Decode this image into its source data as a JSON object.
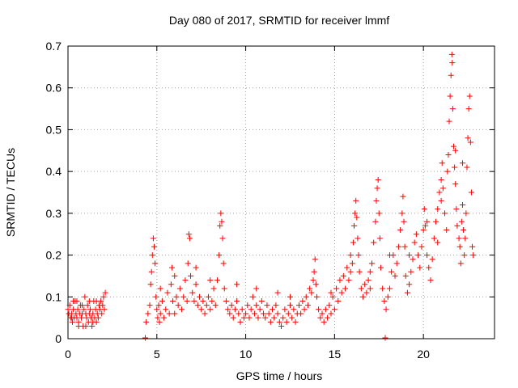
{
  "chart_data": {
    "type": "scatter",
    "title": "Day 080 of 2017, SRMTID for receiver lmmf",
    "xlabel": "GPS time / hours",
    "ylabel": "SRMTID / TECUs",
    "xlim": [
      0,
      24
    ],
    "ylim": [
      0,
      0.7
    ],
    "xticks": [
      {
        "value": 0,
        "label": "0"
      },
      {
        "value": 5,
        "label": "5"
      },
      {
        "value": 10,
        "label": "10"
      },
      {
        "value": 15,
        "label": "15"
      },
      {
        "value": 20,
        "label": "20"
      }
    ],
    "yticks": [
      {
        "value": 0,
        "label": "0"
      },
      {
        "value": 0.1,
        "label": "0.1"
      },
      {
        "value": 0.2,
        "label": "0.2"
      },
      {
        "value": 0.3,
        "label": "0.3"
      },
      {
        "value": 0.4,
        "label": "0.4"
      },
      {
        "value": 0.5,
        "label": "0.5"
      },
      {
        "value": 0.6,
        "label": "0.6"
      },
      {
        "value": 0.7,
        "label": "0.7"
      }
    ],
    "grid": true,
    "marker": "+",
    "series": [
      {
        "name": "SRMTID",
        "color": "#ff0000",
        "points": [
          [
            0.0,
            0.07
          ],
          [
            0.05,
            0.06
          ],
          [
            0.1,
            0.08
          ],
          [
            0.15,
            0.05
          ],
          [
            0.2,
            0.06
          ],
          [
            0.25,
            0.04
          ],
          [
            0.3,
            0.07
          ],
          [
            0.35,
            0.05
          ],
          [
            0.4,
            0.09
          ],
          [
            0.45,
            0.06
          ],
          [
            0.5,
            0.05
          ],
          [
            0.55,
            0.07
          ],
          [
            0.6,
            0.04
          ],
          [
            0.65,
            0.06
          ],
          [
            0.7,
            0.08
          ],
          [
            0.75,
            0.05
          ],
          [
            0.8,
            0.06
          ],
          [
            0.85,
            0.03
          ],
          [
            0.9,
            0.07
          ],
          [
            0.95,
            0.1
          ],
          [
            1.0,
            0.06
          ],
          [
            1.05,
            0.05
          ],
          [
            1.1,
            0.08
          ],
          [
            1.15,
            0.04
          ],
          [
            1.2,
            0.06
          ],
          [
            1.25,
            0.07
          ],
          [
            1.3,
            0.05
          ],
          [
            1.35,
            0.03
          ],
          [
            1.4,
            0.06
          ],
          [
            1.45,
            0.09
          ],
          [
            1.5,
            0.05
          ],
          [
            1.55,
            0.07
          ],
          [
            1.6,
            0.04
          ],
          [
            1.65,
            0.06
          ],
          [
            1.7,
            0.05
          ],
          [
            1.75,
            0.08
          ],
          [
            1.8,
            0.07
          ],
          [
            1.85,
            0.09
          ],
          [
            1.9,
            0.06
          ],
          [
            1.95,
            0.08
          ],
          [
            2.0,
            0.1
          ],
          [
            2.05,
            0.07
          ],
          [
            2.1,
            0.11
          ],
          [
            0.3,
            0.09
          ],
          [
            0.8,
            0.08
          ],
          [
            1.2,
            0.09
          ],
          [
            0.6,
            0.03
          ],
          [
            1.0,
            0.03
          ],
          [
            1.6,
            0.09
          ],
          [
            0.2,
            0.05
          ],
          [
            4.35,
            0.0
          ],
          [
            4.4,
            0.04
          ],
          [
            4.5,
            0.06
          ],
          [
            4.6,
            0.08
          ],
          [
            4.65,
            0.13
          ],
          [
            4.7,
            0.16
          ],
          [
            4.75,
            0.2
          ],
          [
            4.8,
            0.24
          ],
          [
            4.85,
            0.22
          ],
          [
            4.9,
            0.18
          ],
          [
            4.95,
            0.1
          ],
          [
            5.0,
            0.07
          ],
          [
            5.05,
            0.05
          ],
          [
            5.1,
            0.08
          ],
          [
            5.15,
            0.04
          ],
          [
            5.2,
            0.06
          ],
          [
            5.3,
            0.09
          ],
          [
            5.4,
            0.05
          ],
          [
            5.5,
            0.07
          ],
          [
            5.6,
            0.11
          ],
          [
            5.7,
            0.06
          ],
          [
            5.8,
            0.13
          ],
          [
            5.85,
            0.17
          ],
          [
            5.9,
            0.09
          ],
          [
            6.0,
            0.06
          ],
          [
            6.1,
            0.1
          ],
          [
            6.2,
            0.08
          ],
          [
            6.3,
            0.12
          ],
          [
            6.4,
            0.07
          ],
          [
            6.5,
            0.1
          ],
          [
            6.6,
            0.14
          ],
          [
            6.7,
            0.09
          ],
          [
            6.75,
            0.18
          ],
          [
            6.8,
            0.25
          ],
          [
            6.85,
            0.24
          ],
          [
            6.9,
            0.15
          ],
          [
            7.0,
            0.11
          ],
          [
            7.1,
            0.09
          ],
          [
            7.2,
            0.13
          ],
          [
            7.3,
            0.08
          ],
          [
            7.4,
            0.1
          ],
          [
            7.5,
            0.07
          ],
          [
            7.6,
            0.09
          ],
          [
            7.7,
            0.06
          ],
          [
            7.8,
            0.08
          ],
          [
            7.9,
            0.1
          ],
          [
            8.0,
            0.07
          ],
          [
            8.1,
            0.09
          ],
          [
            8.2,
            0.12
          ],
          [
            8.3,
            0.08
          ],
          [
            8.4,
            0.14
          ],
          [
            8.5,
            0.2
          ],
          [
            8.55,
            0.27
          ],
          [
            8.6,
            0.3
          ],
          [
            8.65,
            0.28
          ],
          [
            8.7,
            0.24
          ],
          [
            8.75,
            0.18
          ],
          [
            8.8,
            0.12
          ],
          [
            8.9,
            0.09
          ],
          [
            9.0,
            0.07
          ],
          [
            9.1,
            0.06
          ],
          [
            9.2,
            0.08
          ],
          [
            9.3,
            0.05
          ],
          [
            9.4,
            0.07
          ],
          [
            9.5,
            0.09
          ],
          [
            9.6,
            0.06
          ],
          [
            9.7,
            0.04
          ],
          [
            9.8,
            0.07
          ],
          [
            9.9,
            0.05
          ],
          [
            10.0,
            0.06
          ],
          [
            10.1,
            0.08
          ],
          [
            10.2,
            0.05
          ],
          [
            10.3,
            0.07
          ],
          [
            10.4,
            0.1
          ],
          [
            10.5,
            0.06
          ],
          [
            10.6,
            0.08
          ],
          [
            10.7,
            0.05
          ],
          [
            10.8,
            0.07
          ],
          [
            10.9,
            0.09
          ],
          [
            11.0,
            0.06
          ],
          [
            11.1,
            0.05
          ],
          [
            11.2,
            0.08
          ],
          [
            11.3,
            0.06
          ],
          [
            11.4,
            0.04
          ],
          [
            11.5,
            0.07
          ],
          [
            11.6,
            0.05
          ],
          [
            11.7,
            0.08
          ],
          [
            11.8,
            0.06
          ],
          [
            11.9,
            0.04
          ],
          [
            12.0,
            0.03
          ],
          [
            12.1,
            0.05
          ],
          [
            12.2,
            0.07
          ],
          [
            12.3,
            0.04
          ],
          [
            12.4,
            0.06
          ],
          [
            12.5,
            0.08
          ],
          [
            12.6,
            0.05
          ],
          [
            12.7,
            0.07
          ],
          [
            12.8,
            0.04
          ],
          [
            12.9,
            0.06
          ],
          [
            13.0,
            0.08
          ],
          [
            13.1,
            0.06
          ],
          [
            13.2,
            0.09
          ],
          [
            13.3,
            0.07
          ],
          [
            13.4,
            0.1
          ],
          [
            13.5,
            0.08
          ],
          [
            13.6,
            0.12
          ],
          [
            13.7,
            0.11
          ],
          [
            13.8,
            0.14
          ],
          [
            13.85,
            0.16
          ],
          [
            13.9,
            0.19
          ],
          [
            13.95,
            0.13
          ],
          [
            14.0,
            0.1
          ],
          [
            14.1,
            0.07
          ],
          [
            14.2,
            0.05
          ],
          [
            14.3,
            0.06
          ],
          [
            14.4,
            0.04
          ],
          [
            14.5,
            0.07
          ],
          [
            14.6,
            0.05
          ],
          [
            14.7,
            0.08
          ],
          [
            14.8,
            0.06
          ],
          [
            14.9,
            0.1
          ],
          [
            15.0,
            0.07
          ],
          [
            15.1,
            0.12
          ],
          [
            15.2,
            0.09
          ],
          [
            15.3,
            0.14
          ],
          [
            15.4,
            0.11
          ],
          [
            15.5,
            0.15
          ],
          [
            15.6,
            0.12
          ],
          [
            15.7,
            0.17
          ],
          [
            15.8,
            0.14
          ],
          [
            15.9,
            0.2
          ],
          [
            16.0,
            0.18
          ],
          [
            16.05,
            0.23
          ],
          [
            16.1,
            0.27
          ],
          [
            16.15,
            0.3
          ],
          [
            16.2,
            0.33
          ],
          [
            16.25,
            0.29
          ],
          [
            16.3,
            0.24
          ],
          [
            16.35,
            0.2
          ],
          [
            16.4,
            0.16
          ],
          [
            16.5,
            0.12
          ],
          [
            16.6,
            0.1
          ],
          [
            16.7,
            0.13
          ],
          [
            16.8,
            0.11
          ],
          [
            16.9,
            0.14
          ],
          [
            17.0,
            0.12
          ],
          [
            17.1,
            0.18
          ],
          [
            17.2,
            0.23
          ],
          [
            17.3,
            0.28
          ],
          [
            17.35,
            0.33
          ],
          [
            17.4,
            0.36
          ],
          [
            17.45,
            0.38
          ],
          [
            17.5,
            0.3
          ],
          [
            17.55,
            0.24
          ],
          [
            17.6,
            0.17
          ],
          [
            17.7,
            0.12
          ],
          [
            17.8,
            0.09
          ],
          [
            17.85,
            0.0
          ],
          [
            17.9,
            0.07
          ],
          [
            18.0,
            0.1
          ],
          [
            18.1,
            0.12
          ],
          [
            18.2,
            0.16
          ],
          [
            18.3,
            0.2
          ],
          [
            18.4,
            0.15
          ],
          [
            18.5,
            0.18
          ],
          [
            18.6,
            0.22
          ],
          [
            18.7,
            0.26
          ],
          [
            18.8,
            0.3
          ],
          [
            18.85,
            0.34
          ],
          [
            18.9,
            0.28
          ],
          [
            18.95,
            0.22
          ],
          [
            19.0,
            0.15
          ],
          [
            19.1,
            0.11
          ],
          [
            19.2,
            0.13
          ],
          [
            19.3,
            0.16
          ],
          [
            19.4,
            0.19
          ],
          [
            19.5,
            0.23
          ],
          [
            19.6,
            0.25
          ],
          [
            19.7,
            0.2
          ],
          [
            19.8,
            0.17
          ],
          [
            19.9,
            0.22
          ],
          [
            20.0,
            0.26
          ],
          [
            20.05,
            0.31
          ],
          [
            20.1,
            0.27
          ],
          [
            20.2,
            0.2
          ],
          [
            20.3,
            0.17
          ],
          [
            20.4,
            0.14
          ],
          [
            20.5,
            0.19
          ],
          [
            20.6,
            0.24
          ],
          [
            20.7,
            0.28
          ],
          [
            20.8,
            0.31
          ],
          [
            20.9,
            0.35
          ],
          [
            21.0,
            0.38
          ],
          [
            21.05,
            0.42
          ],
          [
            21.1,
            0.36
          ],
          [
            21.2,
            0.3
          ],
          [
            21.3,
            0.26
          ],
          [
            21.35,
            0.4
          ],
          [
            21.4,
            0.44
          ],
          [
            21.45,
            0.52
          ],
          [
            21.5,
            0.58
          ],
          [
            21.55,
            0.63
          ],
          [
            21.6,
            0.68
          ],
          [
            21.62,
            0.66
          ],
          [
            21.65,
            0.55
          ],
          [
            21.7,
            0.46
          ],
          [
            21.75,
            0.41
          ],
          [
            21.8,
            0.37
          ],
          [
            21.85,
            0.31
          ],
          [
            21.9,
            0.27
          ],
          [
            22.0,
            0.24
          ],
          [
            22.05,
            0.22
          ],
          [
            22.1,
            0.18
          ],
          [
            22.15,
            0.28
          ],
          [
            22.2,
            0.32
          ],
          [
            22.25,
            0.26
          ],
          [
            22.3,
            0.2
          ],
          [
            22.35,
            0.24
          ],
          [
            22.4,
            0.3
          ],
          [
            22.45,
            0.41
          ],
          [
            22.5,
            0.48
          ],
          [
            22.55,
            0.55
          ],
          [
            22.6,
            0.58
          ],
          [
            22.65,
            0.47
          ],
          [
            22.7,
            0.35
          ],
          [
            22.75,
            0.22
          ],
          [
            22.8,
            0.2
          ],
          [
            0.5,
            0.09
          ],
          [
            1.4,
            0.04
          ],
          [
            5.2,
            0.12
          ],
          [
            6.0,
            0.15
          ],
          [
            7.2,
            0.17
          ],
          [
            8.0,
            0.14
          ],
          [
            9.5,
            0.13
          ],
          [
            10.6,
            0.12
          ],
          [
            11.8,
            0.11
          ],
          [
            12.5,
            0.1
          ],
          [
            14.8,
            0.11
          ],
          [
            15.9,
            0.16
          ],
          [
            17.0,
            0.16
          ],
          [
            18.1,
            0.2
          ],
          [
            19.2,
            0.2
          ],
          [
            20.2,
            0.28
          ],
          [
            21.0,
            0.33
          ],
          [
            21.8,
            0.45
          ],
          [
            22.2,
            0.42
          ],
          [
            20.8,
            0.23
          ]
        ]
      }
    ]
  }
}
